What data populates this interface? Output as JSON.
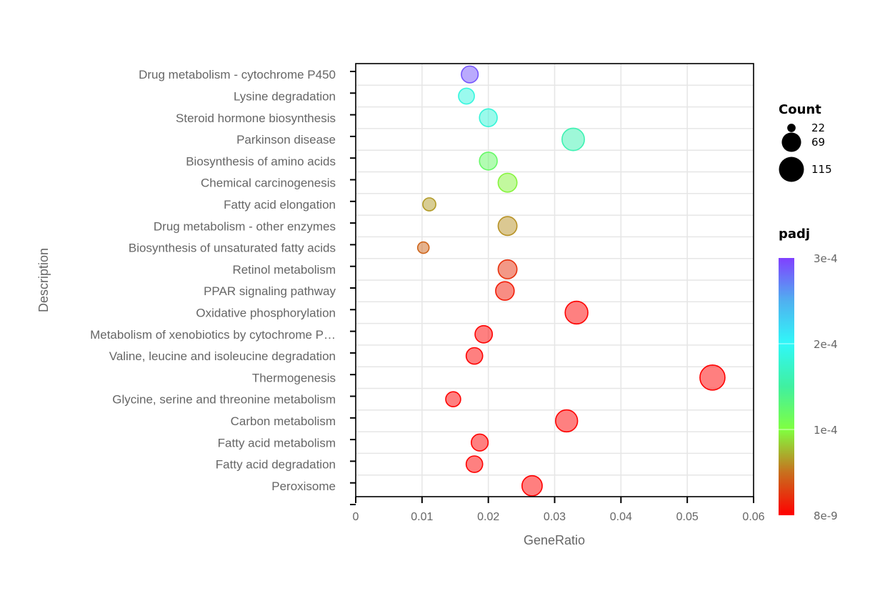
{
  "chart_data": {
    "type": "scatter",
    "subtype": "bubble",
    "title": "",
    "xlabel": "GeneRatio",
    "ylabel": "Description",
    "xlim": [
      0,
      0.06
    ],
    "xticks": [
      0,
      0.01,
      0.02,
      0.03,
      0.04,
      0.05,
      0.06
    ],
    "xtick_labels": [
      "0",
      "0.01",
      "0.02",
      "0.03",
      "0.04",
      "0.05",
      "0.06"
    ],
    "grid": true,
    "categories": [
      "Drug metabolism - cytochrome P450",
      "Lysine degradation",
      "Steroid hormone biosynthesis",
      "Parkinson disease",
      "Biosynthesis of amino acids",
      "Chemical carcinogenesis",
      "Fatty acid elongation",
      "Drug metabolism - other enzymes",
      "Biosynthesis of unsaturated fatty acids",
      "Retinol metabolism",
      "PPAR signaling pathway",
      "Oxidative phosphorylation",
      "Metabolism of xenobiotics by cytochrome P…",
      "Valine, leucine and isoleucine degradation",
      "Thermogenesis",
      "Glycine, serine and threonine metabolism",
      "Carbon metabolism",
      "Fatty acid metabolism",
      "Fatty acid degradation",
      "Peroxisome"
    ],
    "points": [
      {
        "description": "Drug metabolism - cytochrome P450",
        "gene_ratio": 0.0172,
        "count": 52,
        "padj": 0.00029
      },
      {
        "description": "Lysine degradation",
        "gene_ratio": 0.0167,
        "count": 46,
        "padj": 0.000185
      },
      {
        "description": "Steroid hormone biosynthesis",
        "gene_ratio": 0.02,
        "count": 58,
        "padj": 0.000182
      },
      {
        "description": "Parkinson disease",
        "gene_ratio": 0.0328,
        "count": 92,
        "padj": 0.00016
      },
      {
        "description": "Biosynthesis of amino acids",
        "gene_ratio": 0.02,
        "count": 58,
        "padj": 0.00012
      },
      {
        "description": "Chemical carcinogenesis",
        "gene_ratio": 0.0229,
        "count": 65,
        "padj": 9.6e-05
      },
      {
        "description": "Fatty acid elongation",
        "gene_ratio": 0.0111,
        "count": 31,
        "padj": 6.5e-05
      },
      {
        "description": "Drug metabolism - other enzymes",
        "gene_ratio": 0.0229,
        "count": 65,
        "padj": 6.2e-05
      },
      {
        "description": "Biosynthesis of unsaturated fatty acids",
        "gene_ratio": 0.0102,
        "count": 24,
        "padj": 4.5e-05
      },
      {
        "description": "Retinol metabolism",
        "gene_ratio": 0.0229,
        "count": 65,
        "padj": 2.2e-05
      },
      {
        "description": "PPAR signaling pathway",
        "gene_ratio": 0.0225,
        "count": 63,
        "padj": 1.2e-05
      },
      {
        "description": "Oxidative phosphorylation",
        "gene_ratio": 0.0333,
        "count": 95,
        "padj": 1e-06
      },
      {
        "description": "Metabolism of xenobiotics by cytochrome P…",
        "gene_ratio": 0.0193,
        "count": 55,
        "padj": 1e-06
      },
      {
        "description": "Valine, leucine and isoleucine degradation",
        "gene_ratio": 0.0179,
        "count": 50,
        "padj": 1e-06
      },
      {
        "description": "Thermogenesis",
        "gene_ratio": 0.0538,
        "count": 115,
        "padj": 1e-07
      },
      {
        "description": "Glycine, serine and threonine metabolism",
        "gene_ratio": 0.0147,
        "count": 41,
        "padj": 1e-06
      },
      {
        "description": "Carbon metabolism",
        "gene_ratio": 0.0318,
        "count": 89,
        "padj": 1e-06
      },
      {
        "description": "Fatty acid metabolism",
        "gene_ratio": 0.0187,
        "count": 52,
        "padj": 1e-06
      },
      {
        "description": "Fatty acid degradation",
        "gene_ratio": 0.0179,
        "count": 50,
        "padj": 1e-06
      },
      {
        "description": "Peroxisome",
        "gene_ratio": 0.0266,
        "count": 75,
        "padj": 8e-09
      }
    ],
    "size_legend": {
      "title": "Count",
      "placement": "right",
      "values": [
        22,
        69,
        115
      ],
      "labels": [
        "22",
        "69",
        "115"
      ]
    },
    "color_legend": {
      "title": "padj",
      "placement": "right",
      "range": [
        8e-09,
        0.0003
      ],
      "ticks": [
        8e-09,
        0.0001,
        0.0002,
        0.0003
      ],
      "tick_labels": [
        "8e-9",
        "1e-4",
        "2e-4",
        "3e-4"
      ],
      "colors": [
        "#ff0000",
        "#c8701e",
        "#80ff40",
        "#40f0a0",
        "#30f8f8",
        "#50b0f0",
        "#8040ff"
      ]
    }
  }
}
